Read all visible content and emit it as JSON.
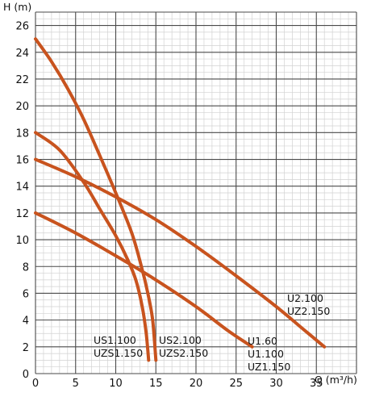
{
  "chart_data": {
    "type": "line",
    "ylabel": "H (m)",
    "xlabel": "Q (m³/h)",
    "xlim": [
      0,
      40
    ],
    "ylim": [
      0,
      27
    ],
    "x_ticks": [
      0,
      5,
      10,
      15,
      20,
      25,
      30,
      35
    ],
    "y_ticks": [
      0,
      2,
      4,
      6,
      8,
      10,
      12,
      14,
      16,
      18,
      20,
      22,
      24,
      26
    ],
    "grid": true,
    "line_color": "#c8531e",
    "series": [
      {
        "name": "US1.100 UZS1.150",
        "label_lines": [
          "US1.100",
          "UZS1.150"
        ],
        "points": [
          [
            0,
            18
          ],
          [
            3,
            16.7
          ],
          [
            6,
            14.3
          ],
          [
            8,
            12.3
          ],
          [
            10,
            10.3
          ],
          [
            11.5,
            8.5
          ],
          [
            12.5,
            7
          ],
          [
            13.3,
            5
          ],
          [
            13.8,
            3
          ],
          [
            14.1,
            1
          ]
        ]
      },
      {
        "name": "US2.100 UZS2.150",
        "label_lines": [
          "US2.100",
          "UZS2.150"
        ],
        "points": [
          [
            0,
            25
          ],
          [
            2,
            23.3
          ],
          [
            4,
            21.3
          ],
          [
            6,
            19
          ],
          [
            8,
            16.3
          ],
          [
            10,
            13.5
          ],
          [
            12,
            10.5
          ],
          [
            13.2,
            8
          ],
          [
            14,
            6
          ],
          [
            14.6,
            4
          ],
          [
            15,
            1
          ]
        ]
      },
      {
        "name": "U1.60 U1.100 UZ1.150",
        "label_lines": [
          "U1.60",
          "U1.100",
          "UZ1.150"
        ],
        "points": [
          [
            0,
            12
          ],
          [
            5,
            10.5
          ],
          [
            10,
            8.8
          ],
          [
            15,
            7
          ],
          [
            20,
            5
          ],
          [
            24,
            3.2
          ],
          [
            27,
            2
          ]
        ]
      },
      {
        "name": "U2.100 UZ2.150",
        "label_lines": [
          "U2.100",
          "UZ2.150"
        ],
        "points": [
          [
            0,
            16
          ],
          [
            5,
            14.7
          ],
          [
            10,
            13.2
          ],
          [
            15,
            11.5
          ],
          [
            20,
            9.5
          ],
          [
            25,
            7.3
          ],
          [
            30,
            5
          ],
          [
            33,
            3.5
          ],
          [
            36,
            2
          ]
        ]
      }
    ]
  }
}
